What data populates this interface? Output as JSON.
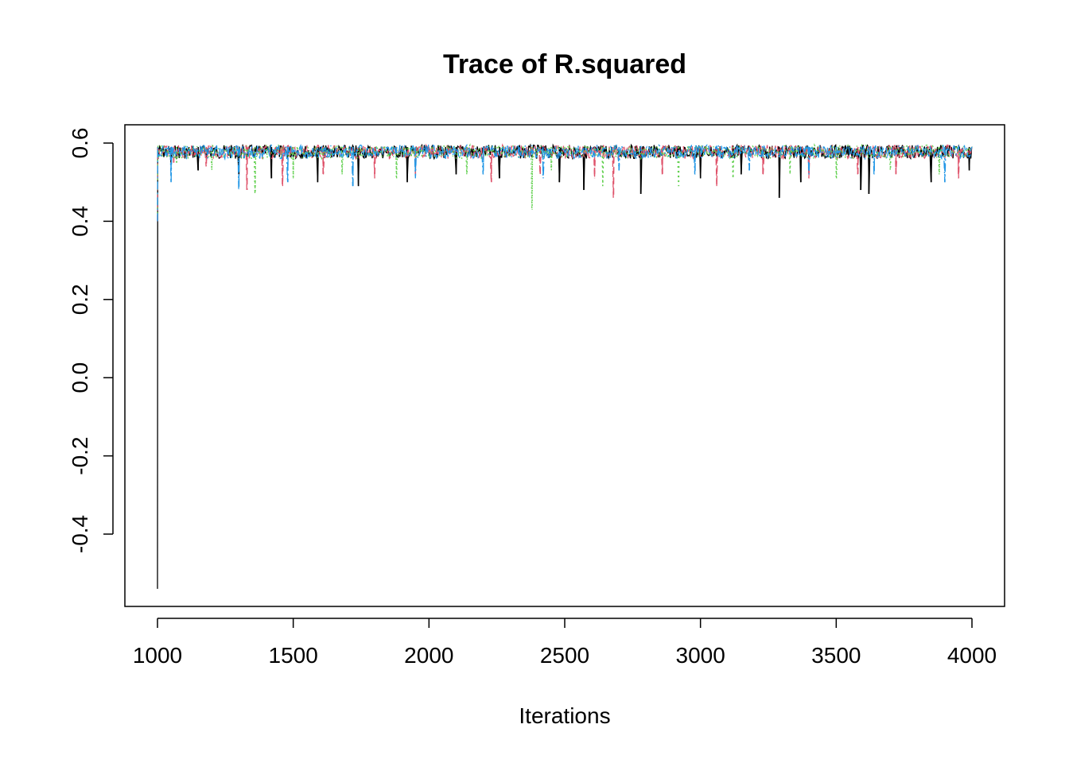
{
  "chart_data": {
    "type": "line",
    "title": "Trace of R.squared",
    "xlabel": "Iterations",
    "ylabel": "",
    "xlim": [
      1000,
      4000
    ],
    "ylim": [
      -0.55,
      0.6
    ],
    "x_ticks": [
      1000,
      1500,
      2000,
      2500,
      3000,
      3500,
      4000
    ],
    "x_tick_labels": [
      "1000",
      "1500",
      "2000",
      "2500",
      "3000",
      "3500",
      "4000"
    ],
    "y_ticks": [
      -0.4,
      -0.2,
      0.0,
      0.2,
      0.4,
      0.6
    ],
    "y_tick_labels": [
      "-0.4",
      "-0.2",
      "0.0",
      "0.2",
      "0.4",
      "0.6"
    ],
    "grid": false,
    "legend": "none",
    "series": [
      {
        "color": "#000000",
        "dash": "solid",
        "x": [
          1000,
          1001,
          1002,
          1050,
          1150,
          1300,
          1420,
          1590,
          1740,
          1920,
          2100,
          2260,
          2480,
          2570,
          2780,
          3000,
          3150,
          3290,
          3370,
          3590,
          3620,
          3850,
          3990,
          4000
        ],
        "y": [
          -0.54,
          0.59,
          0.56,
          0.55,
          0.53,
          0.52,
          0.51,
          0.5,
          0.49,
          0.5,
          0.52,
          0.51,
          0.5,
          0.48,
          0.47,
          0.51,
          0.52,
          0.46,
          0.5,
          0.48,
          0.47,
          0.5,
          0.53,
          0.59
        ]
      },
      {
        "color": "#DF536B",
        "dash": "dashed",
        "x": [
          1000,
          1001,
          1060,
          1180,
          1330,
          1460,
          1610,
          1800,
          1950,
          2230,
          2410,
          2610,
          2680,
          2860,
          3060,
          3230,
          3400,
          3580,
          3720,
          3950,
          4000
        ],
        "y": [
          0.4,
          0.59,
          0.55,
          0.54,
          0.48,
          0.49,
          0.52,
          0.51,
          0.52,
          0.5,
          0.52,
          0.51,
          0.46,
          0.52,
          0.49,
          0.52,
          0.51,
          0.52,
          0.52,
          0.51,
          0.59
        ]
      },
      {
        "color": "#61D04F",
        "dash": "dotted",
        "x": [
          1000,
          1001,
          1070,
          1200,
          1360,
          1500,
          1680,
          1880,
          2140,
          2380,
          2450,
          2640,
          2920,
          3120,
          3330,
          3500,
          3700,
          3880,
          4000
        ],
        "y": [
          0.42,
          0.59,
          0.55,
          0.53,
          0.47,
          0.51,
          0.52,
          0.51,
          0.52,
          0.43,
          0.53,
          0.49,
          0.49,
          0.51,
          0.52,
          0.51,
          0.53,
          0.52,
          0.59
        ]
      },
      {
        "color": "#2297E6",
        "dash": "dashdot",
        "x": [
          1000,
          1001,
          1050,
          1300,
          1480,
          1720,
          1950,
          2200,
          2420,
          2700,
          2980,
          3180,
          3400,
          3640,
          3900,
          4000
        ],
        "y": [
          0.4,
          0.59,
          0.5,
          0.48,
          0.5,
          0.49,
          0.51,
          0.52,
          0.51,
          0.53,
          0.52,
          0.53,
          0.52,
          0.52,
          0.5,
          0.59
        ]
      }
    ]
  }
}
